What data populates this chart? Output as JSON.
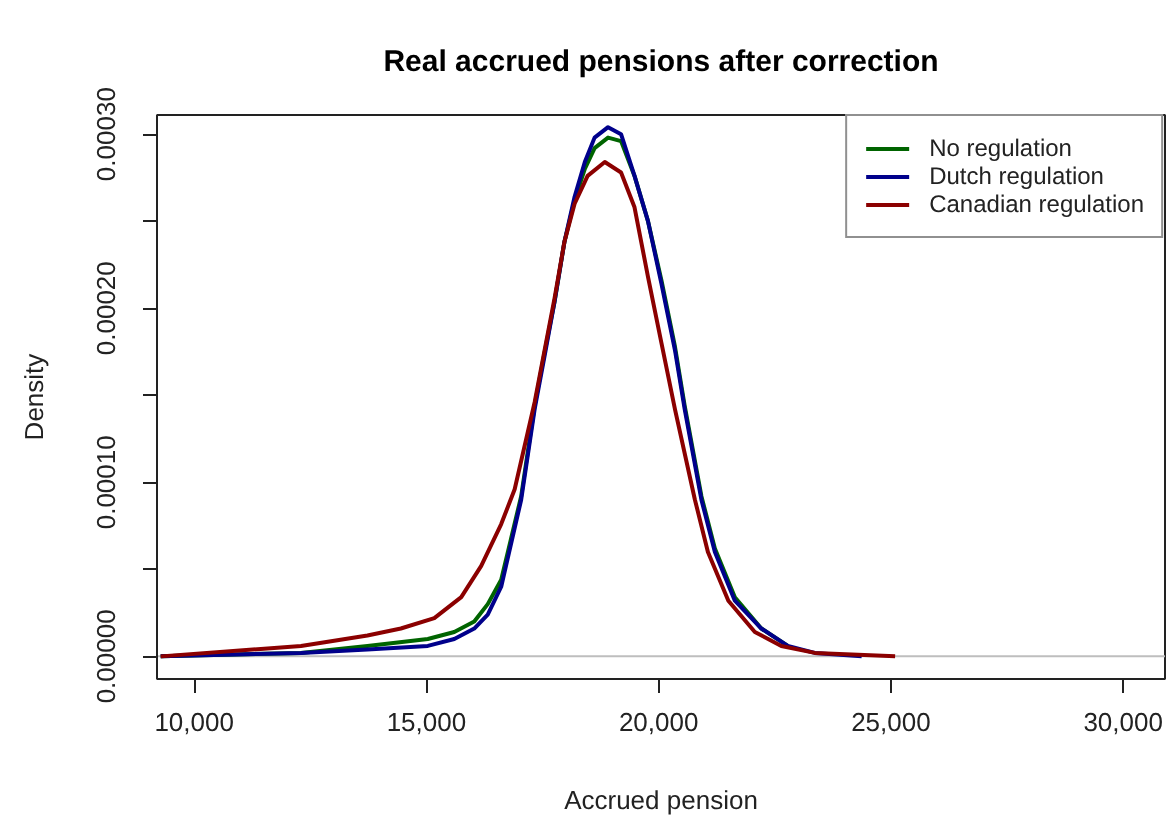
{
  "chart_data": {
    "type": "line",
    "title": "Real accrued pensions after correction",
    "xlabel": "Accrued pension",
    "ylabel": "Density",
    "xlim": [
      9200,
      30900
    ],
    "ylim": [
      -1.3e-05,
      0.000311
    ],
    "xticks": [
      {
        "value": 10000,
        "label": "10,000"
      },
      {
        "value": 15000,
        "label": "15,000"
      },
      {
        "value": 20000,
        "label": "20,000"
      },
      {
        "value": 25000,
        "label": "25,000"
      },
      {
        "value": 30000,
        "label": "30,000"
      }
    ],
    "yticks": [
      {
        "value": 0,
        "label": "0.00000"
      },
      {
        "value": 5e-05,
        "label": null
      },
      {
        "value": 0.0001,
        "label": "0.00010"
      },
      {
        "value": 0.00015,
        "label": null
      },
      {
        "value": 0.0002,
        "label": "0.00020"
      },
      {
        "value": 0.00025,
        "label": null
      },
      {
        "value": 0.0003,
        "label": "0.00030"
      }
    ],
    "grid": false,
    "legend": "top right",
    "ref_lines": [
      {
        "axis": "y",
        "value": 0,
        "color": "#bebebe"
      }
    ],
    "series": [
      {
        "name": "No regulation",
        "color": "#006400",
        "x": [
          9280,
          12300,
          13730,
          15030,
          15600,
          16030,
          16320,
          16610,
          17040,
          17330,
          17540,
          17760,
          17970,
          18190,
          18410,
          18620,
          18910,
          19190,
          19480,
          19770,
          20060,
          20350,
          20560,
          20920,
          21210,
          21640,
          22210,
          22780
        ],
        "values": [
          0,
          2e-06,
          6e-06,
          1e-05,
          1.4e-05,
          2e-05,
          3e-05,
          4.4e-05,
          9.2e-05,
          0.000144,
          0.000174,
          0.000204,
          0.000238,
          0.000262,
          0.00028,
          0.000292,
          0.000298,
          0.000296,
          0.000276,
          0.00025,
          0.000216,
          0.000178,
          0.000144,
          9.2e-05,
          6.2e-05,
          3.4e-05,
          1.6e-05,
          6e-06
        ]
      },
      {
        "name": "Dutch regulation",
        "color": "#00008b",
        "x": [
          9280,
          12300,
          13730,
          15030,
          15600,
          16030,
          16320,
          16610,
          17040,
          17330,
          17540,
          17760,
          17970,
          18190,
          18410,
          18620,
          18910,
          19190,
          19480,
          19770,
          20060,
          20350,
          20560,
          20920,
          21210,
          21640,
          22210,
          22780,
          23360,
          24370
        ],
        "values": [
          0,
          2e-06,
          4e-06,
          6e-06,
          1e-05,
          1.6e-05,
          2.4e-05,
          4e-05,
          9e-05,
          0.000142,
          0.000172,
          0.000204,
          0.000238,
          0.000264,
          0.000284,
          0.000298,
          0.000304,
          0.0003,
          0.000276,
          0.00025,
          0.000214,
          0.000176,
          0.000142,
          9e-05,
          6e-05,
          3.2e-05,
          1.6e-05,
          6e-06,
          2e-06,
          0
        ]
      },
      {
        "name": "Canadian regulation",
        "color": "#8b0000",
        "x": [
          9280,
          12300,
          13730,
          14450,
          15170,
          15750,
          16180,
          16610,
          16900,
          17330,
          17760,
          17970,
          18190,
          18470,
          18840,
          19190,
          19480,
          19770,
          20060,
          20350,
          20780,
          21060,
          21500,
          22070,
          22640,
          23360,
          25090
        ],
        "values": [
          0,
          6e-06,
          1.2e-05,
          1.6e-05,
          2.2e-05,
          3.4e-05,
          5.2e-05,
          7.6e-05,
          9.6e-05,
          0.000146,
          0.000206,
          0.000238,
          0.00026,
          0.000276,
          0.000284,
          0.000278,
          0.000258,
          0.000218,
          0.00018,
          0.000142,
          9e-05,
          6e-05,
          3.2e-05,
          1.4e-05,
          6e-06,
          2e-06,
          0
        ]
      }
    ]
  }
}
